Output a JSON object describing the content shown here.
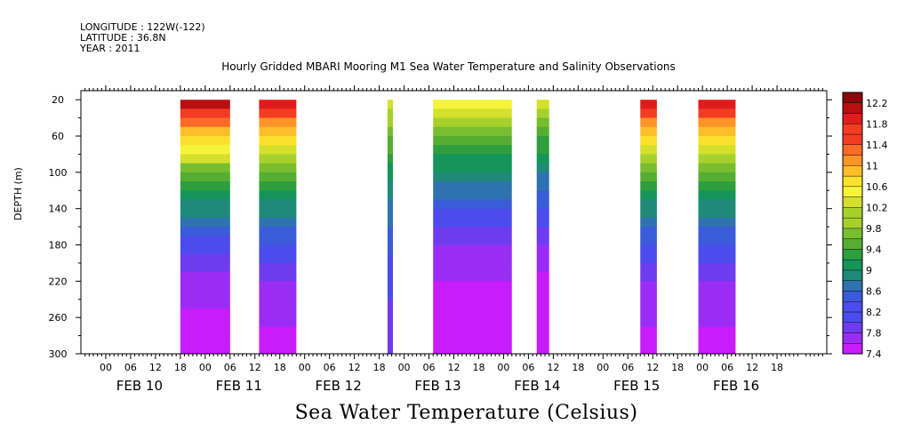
{
  "header": {
    "longitude": "LONGITUDE : 122W(-122)",
    "latitude": "LATITUDE : 36.8N",
    "year": "YEAR : 2011"
  },
  "chart_data": {
    "type": "heatmap",
    "title": "Hourly Gridded MBARI Mooring M1 Sea Water Temperature and Salinity Observations",
    "xlabel": "Sea Water Temperature (Celsius)",
    "ylabel": "DEPTH (m)",
    "y_ticks": [
      20,
      60,
      100,
      140,
      180,
      220,
      260,
      300
    ],
    "ylim": [
      300,
      10
    ],
    "x_hour_ticks": [
      "00",
      "06",
      "12",
      "18",
      "00",
      "06",
      "12",
      "18",
      "00",
      "06",
      "12",
      "18",
      "00",
      "06",
      "12",
      "18",
      "00",
      "06",
      "12",
      "18",
      "00",
      "06",
      "12",
      "18",
      "00",
      "06",
      "12",
      "18"
    ],
    "x_day_labels": [
      "FEB 10",
      "FEB 11",
      "FEB 12",
      "FEB 13",
      "FEB 14",
      "FEB 15",
      "FEB 16"
    ],
    "colorbar_labels": [
      "12.2",
      "11.8",
      "11.4",
      "11",
      "10.6",
      "10.2",
      "9.8",
      "9.4",
      "9",
      "8.6",
      "8.2",
      "7.8",
      "7.4"
    ],
    "colorbar_range": [
      7.4,
      12.4
    ],
    "colorbar_step": 0.2,
    "data_blocks": [
      {
        "start_hour": 18,
        "end_hour": 30,
        "surface_temp": 12.2,
        "bottom_temp": 7.5
      },
      {
        "start_hour": 37,
        "end_hour": 46,
        "surface_temp": 12.0,
        "bottom_temp": 7.6
      },
      {
        "start_hour": 68,
        "end_hour": 69.3,
        "surface_temp": 10.4,
        "bottom_temp": 8.0
      },
      {
        "start_hour": 79,
        "end_hour": 98,
        "surface_temp": 10.6,
        "bottom_temp": 7.4
      },
      {
        "start_hour": 104,
        "end_hour": 107,
        "surface_temp": 10.4,
        "bottom_temp": 7.4
      },
      {
        "start_hour": 129,
        "end_hour": 133,
        "surface_temp": 12.0,
        "bottom_temp": 7.6
      },
      {
        "start_hour": 143,
        "end_hour": 152,
        "surface_temp": 12.0,
        "bottom_temp": 7.6
      }
    ]
  }
}
